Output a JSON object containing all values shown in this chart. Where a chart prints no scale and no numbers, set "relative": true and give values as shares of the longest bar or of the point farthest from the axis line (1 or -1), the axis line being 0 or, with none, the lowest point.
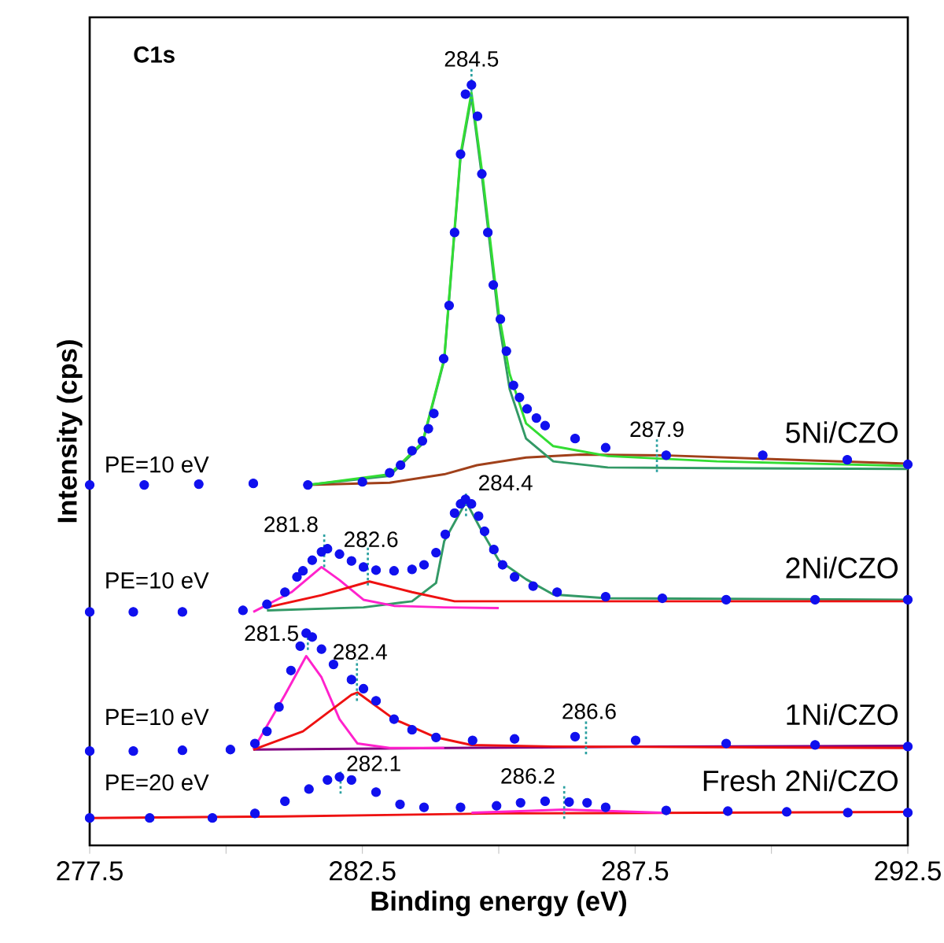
{
  "chart_data": {
    "type": "line",
    "relative": true,
    "xlabel": "Binding energy (eV)",
    "ylabel": "Intensity (cps)",
    "xlim": [
      277.5,
      292.5
    ],
    "xticks": [
      277.5,
      {
        "value": 280,
        "label": null
      },
      282.5,
      {
        "value": 285,
        "label": null
      },
      287.5,
      {
        "value": 290,
        "label": null
      },
      292.5
    ],
    "annotations": [
      "C1s",
      "PE=10 eV",
      "PE=10 eV",
      "PE=10 eV",
      "PE=20 eV",
      {
        "text": "284.5",
        "x": 284.5,
        "y": 1.0
      },
      {
        "text": "287.9",
        "x": 287.9,
        "y": 0.513
      },
      {
        "text": "284.4",
        "x": 284.4,
        "y": 0.455
      },
      {
        "text": "281.8",
        "x": 281.8,
        "y": 0.388
      },
      {
        "text": "282.6",
        "x": 282.6,
        "y": 0.364
      },
      {
        "text": "281.5",
        "x": 281.5,
        "y": 0.279
      },
      {
        "text": "282.4",
        "x": 282.4,
        "y": 0.212
      },
      {
        "text": "286.6",
        "x": 286.6,
        "y": 0.142
      },
      {
        "text": "282.1",
        "x": 282.1,
        "y": 0.09
      },
      {
        "text": "286.2",
        "x": 286.2,
        "y": 0.057
      }
    ],
    "series": [
      {
        "color": "#a0401a",
        "x": [
          281.5,
          283,
          284,
          284.6,
          285.5,
          286.5,
          288,
          290,
          292.5
        ],
        "values": [
          0.474,
          0.477,
          0.488,
          0.5,
          0.51,
          0.514,
          0.513,
          0.508,
          0.502
        ]
      },
      {
        "color": "#339966",
        "x": [
          281.5,
          283,
          283.6,
          284,
          284.3,
          284.5,
          284.7,
          285,
          285.2,
          285.5,
          286,
          287,
          289,
          292.5
        ],
        "values": [
          0.474,
          0.486,
          0.528,
          0.638,
          0.905,
          0.985,
          0.875,
          0.69,
          0.6,
          0.535,
          0.505,
          0.497,
          0.496,
          0.495
        ]
      },
      {
        "color": "#33dd33",
        "x": [
          281.5,
          283,
          283.6,
          284,
          284.3,
          284.5,
          284.7,
          285,
          285.2,
          285.5,
          286,
          287,
          289,
          292.5
        ],
        "values": [
          0.474,
          0.488,
          0.53,
          0.64,
          0.909,
          0.99,
          0.883,
          0.7,
          0.62,
          0.555,
          0.525,
          0.512,
          0.505,
          0.499
        ]
      },
      {
        "type": "scatter",
        "name": "5Ni/CZO",
        "color": "#1010ee",
        "x": [
          277.5,
          278.5,
          279.5,
          280.5,
          281.5,
          282.5,
          283,
          283.2,
          283.41,
          283.6,
          283.71,
          283.81,
          283.99,
          284.09,
          284.19,
          284.3,
          284.39,
          284.5,
          284.61,
          284.69,
          284.8,
          284.9,
          285.03,
          285.14,
          285.27,
          285.38,
          285.52,
          285.69,
          285.85,
          286.4,
          286.96,
          288.07,
          289.84,
          291.39,
          292.5
        ],
        "values": [
          0.474,
          0.474,
          0.475,
          0.476,
          0.474,
          0.478,
          0.49,
          0.5,
          0.519,
          0.532,
          0.548,
          0.568,
          0.64,
          0.71,
          0.806,
          0.909,
          0.988,
          1.0,
          0.959,
          0.883,
          0.806,
          0.737,
          0.692,
          0.65,
          0.605,
          0.589,
          0.574,
          0.562,
          0.552,
          0.535,
          0.523,
          0.513,
          0.513,
          0.507,
          0.501
        ]
      },
      {
        "color": "#339966",
        "x": [
          280.75,
          282.52,
          283.41,
          283.85,
          284.0,
          284.4,
          284.7,
          285,
          285.5,
          286,
          287,
          292.5
        ],
        "values": [
          0.309,
          0.313,
          0.321,
          0.345,
          0.4,
          0.452,
          0.412,
          0.375,
          0.35,
          0.33,
          0.325,
          0.323
        ]
      },
      {
        "color": "#ff22cc",
        "x": [
          280.5,
          281.2,
          281.75,
          282.08,
          282.52,
          283.08,
          284,
          285
        ],
        "values": [
          0.307,
          0.333,
          0.366,
          0.349,
          0.323,
          0.315,
          0.313,
          0.312
        ]
      },
      {
        "color": "#ee1111",
        "x": [
          280.75,
          281.75,
          282.63,
          283.41,
          284.19,
          285.85,
          292.5
        ],
        "values": [
          0.313,
          0.329,
          0.347,
          0.333,
          0.321,
          0.321,
          0.321
        ]
      },
      {
        "type": "scatter",
        "name": "2Ni/CZO",
        "color": "#1010ee",
        "x": [
          277.5,
          278.3,
          279.2,
          280.31,
          280.75,
          281.08,
          281.3,
          281.41,
          281.58,
          281.75,
          281.86,
          282.08,
          282.3,
          282.52,
          282.75,
          283.08,
          283.41,
          283.63,
          283.85,
          284.02,
          284.19,
          284.3,
          284.39,
          284.5,
          284.63,
          284.74,
          284.91,
          285.07,
          285.29,
          285.63,
          286.07,
          286.96,
          288.0,
          289.17,
          290.8,
          292.5
        ],
        "values": [
          0.307,
          0.307,
          0.307,
          0.309,
          0.317,
          0.333,
          0.353,
          0.361,
          0.375,
          0.386,
          0.39,
          0.383,
          0.374,
          0.366,
          0.362,
          0.361,
          0.363,
          0.369,
          0.385,
          0.409,
          0.437,
          0.449,
          0.455,
          0.449,
          0.433,
          0.413,
          0.389,
          0.369,
          0.353,
          0.341,
          0.333,
          0.327,
          0.325,
          0.323,
          0.323,
          0.323
        ]
      },
      {
        "color": "#800080",
        "x": [
          280.5,
          284,
          288,
          292.5
        ],
        "values": [
          0.126,
          0.128,
          0.13,
          0.131
        ]
      },
      {
        "color": "#ff22cc",
        "x": [
          280.5,
          281.08,
          281.47,
          281.75,
          282.08,
          282.41,
          283,
          284
        ],
        "values": [
          0.126,
          0.198,
          0.249,
          0.221,
          0.166,
          0.134,
          0.128,
          0.128
        ]
      },
      {
        "color": "#ee1111",
        "x": [
          280.5,
          281.41,
          282.3,
          282.41,
          283.08,
          283.85,
          284.5,
          286,
          292.5
        ],
        "values": [
          0.126,
          0.15,
          0.198,
          0.201,
          0.166,
          0.142,
          0.132,
          0.13,
          0.128
        ]
      },
      {
        "type": "scatter",
        "name": "1Ni/CZO",
        "color": "#1010ee",
        "x": [
          277.5,
          278.3,
          279.2,
          280.08,
          280.53,
          280.75,
          280.97,
          281.19,
          281.36,
          281.47,
          281.58,
          281.75,
          281.97,
          282.3,
          282.52,
          282.75,
          283.08,
          283.41,
          283.85,
          284.52,
          285.29,
          286.4,
          287.51,
          289.17,
          290.8,
          292.5
        ],
        "values": [
          0.124,
          0.124,
          0.125,
          0.126,
          0.134,
          0.15,
          0.182,
          0.23,
          0.262,
          0.279,
          0.274,
          0.258,
          0.238,
          0.218,
          0.206,
          0.19,
          0.166,
          0.152,
          0.142,
          0.138,
          0.14,
          0.143,
          0.138,
          0.134,
          0.132,
          0.13
        ]
      },
      {
        "color": "#ee1111",
        "x": [
          277.5,
          281,
          285,
          292.5
        ],
        "values": [
          0.036,
          0.038,
          0.042,
          0.044
        ]
      },
      {
        "color": "#ff22cc",
        "x": [
          284.5,
          285.4,
          286.2,
          287.1,
          288
        ],
        "values": [
          0.043,
          0.045,
          0.047,
          0.045,
          0.043
        ]
      },
      {
        "type": "scatter",
        "name": "Fresh 2Ni/CZO",
        "color": "#1010ee",
        "x": [
          277.5,
          278.6,
          279.75,
          280.53,
          281.08,
          281.52,
          281.86,
          282.08,
          282.3,
          282.75,
          283.19,
          283.63,
          284.3,
          284.96,
          285.4,
          285.85,
          286.29,
          286.62,
          286.96,
          288.07,
          289.2,
          290.28,
          291.4,
          292.5
        ],
        "values": [
          0.036,
          0.036,
          0.036,
          0.042,
          0.058,
          0.074,
          0.086,
          0.09,
          0.086,
          0.07,
          0.054,
          0.05,
          0.05,
          0.052,
          0.056,
          0.058,
          0.057,
          0.056,
          0.05,
          0.046,
          0.045,
          0.044,
          0.043,
          0.043
        ]
      }
    ]
  }
}
